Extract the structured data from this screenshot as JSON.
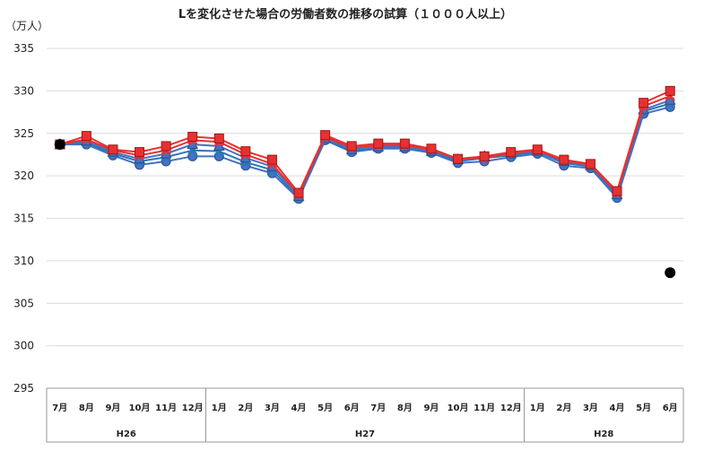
{
  "chart_data": {
    "type": "line",
    "title": "Lを変化させた場合の労働者数の推移の試算（１０００人以上）",
    "unit_label": "（万人）",
    "ylim": [
      295,
      335
    ],
    "yticks": [
      295,
      300,
      305,
      310,
      315,
      320,
      325,
      330,
      335
    ],
    "grid": true,
    "categories": [
      "7月",
      "8月",
      "9月",
      "10月",
      "11月",
      "12月",
      "1月",
      "2月",
      "3月",
      "4月",
      "5月",
      "6月",
      "7月",
      "8月",
      "9月",
      "10月",
      "11月",
      "12月",
      "1月",
      "2月",
      "3月",
      "4月",
      "5月",
      "6月"
    ],
    "groups": [
      {
        "label": "H26",
        "start": 0,
        "end": 5
      },
      {
        "label": "H27",
        "start": 6,
        "end": 17
      },
      {
        "label": "H28",
        "start": 18,
        "end": 23
      }
    ],
    "series": [
      {
        "color": "#4472C4",
        "marker": "circle",
        "values": [
          323.7,
          323.7,
          322.4,
          321.3,
          321.7,
          322.3,
          322.3,
          321.2,
          320.3,
          317.3,
          324.2,
          322.8,
          323.2,
          323.2,
          322.7,
          321.5,
          321.7,
          322.2,
          322.6,
          321.2,
          320.9,
          317.4,
          327.3,
          328.1
        ]
      },
      {
        "color": "#2E75B6",
        "marker": "x",
        "values": [
          323.7,
          323.9,
          322.6,
          321.7,
          322.2,
          323.0,
          322.9,
          321.6,
          320.7,
          317.4,
          324.3,
          322.9,
          323.3,
          323.3,
          322.8,
          321.7,
          322.1,
          322.4,
          322.8,
          321.5,
          321.1,
          317.6,
          327.6,
          328.5
        ]
      },
      {
        "color": "#4472C4",
        "marker": "triangle",
        "values": [
          323.7,
          324.1,
          322.8,
          322.0,
          322.6,
          323.7,
          323.5,
          322.1,
          321.1,
          317.6,
          324.4,
          323.1,
          323.4,
          323.4,
          322.9,
          321.9,
          322.3,
          322.6,
          322.9,
          321.7,
          321.2,
          317.8,
          327.8,
          328.9
        ]
      },
      {
        "color": "#E83030",
        "marker": "x",
        "values": [
          323.7,
          324.3,
          323.0,
          322.4,
          323.0,
          324.2,
          324.0,
          322.5,
          321.4,
          317.8,
          324.6,
          323.3,
          323.6,
          323.6,
          323.1,
          322.0,
          322.1,
          322.7,
          323.0,
          321.8,
          321.3,
          318.0,
          328.2,
          329.4
        ]
      },
      {
        "color": "#E83030",
        "marker": "square",
        "values": [
          323.7,
          324.7,
          323.1,
          322.8,
          323.5,
          324.6,
          324.4,
          322.9,
          321.9,
          318.0,
          324.8,
          323.5,
          323.8,
          323.8,
          323.2,
          322.0,
          322.3,
          322.8,
          323.1,
          321.9,
          321.4,
          318.2,
          328.6,
          330.0
        ]
      }
    ],
    "points": [
      {
        "x_index": 0,
        "value": 323.7,
        "color": "#000000"
      },
      {
        "x_index": 23,
        "value": 308.6,
        "color": "#000000"
      }
    ]
  }
}
